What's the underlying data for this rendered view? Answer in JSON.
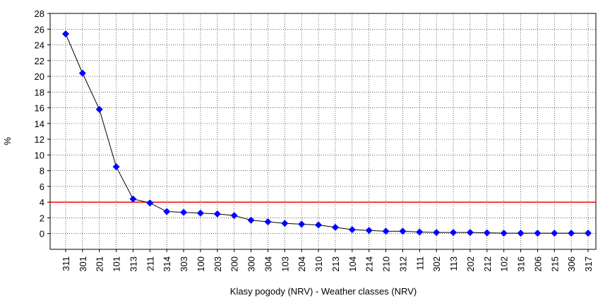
{
  "chart_data": {
    "type": "line",
    "xlabel": "Klasy pogody (NRV) - Weather classes (NRV)",
    "ylabel": "%",
    "categories": [
      "311",
      "301",
      "201",
      "101",
      "313",
      "211",
      "314",
      "303",
      "100",
      "203",
      "200",
      "300",
      "304",
      "103",
      "204",
      "310",
      "213",
      "104",
      "214",
      "210",
      "312",
      "111",
      "302",
      "113",
      "202",
      "212",
      "102",
      "316",
      "206",
      "215",
      "306",
      "317"
    ],
    "series": [
      {
        "color": "#0000ff",
        "values": [
          25.4,
          20.4,
          15.8,
          8.5,
          4.4,
          3.9,
          2.8,
          2.7,
          2.6,
          2.5,
          2.3,
          1.7,
          1.5,
          1.3,
          1.2,
          1.1,
          0.8,
          0.5,
          0.4,
          0.3,
          0.3,
          0.2,
          0.15,
          0.15,
          0.15,
          0.1,
          0.05,
          0.05,
          0.05,
          0.05,
          0.05,
          0.05
        ]
      }
    ],
    "reference_line": {
      "value": 4,
      "color": "#ff0000"
    },
    "ylim": [
      -2,
      28
    ],
    "yticks": [
      0,
      2,
      4,
      6,
      8,
      10,
      12,
      14,
      16,
      18,
      20,
      22,
      24,
      26,
      28
    ],
    "grid": true
  }
}
